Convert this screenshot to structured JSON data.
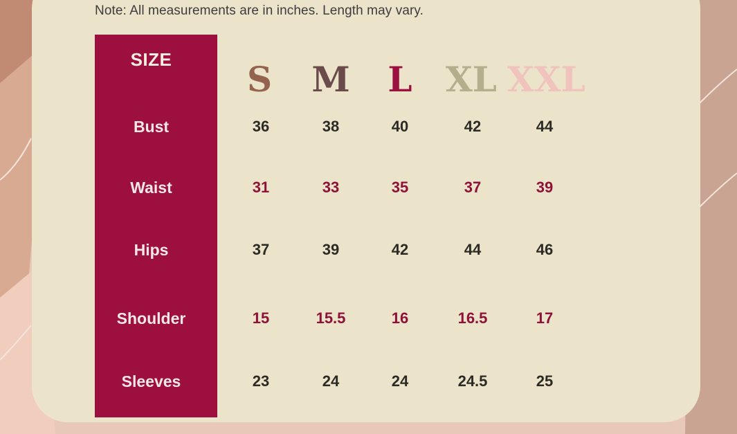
{
  "note": "Note: All measurements are in inches. Length may vary.",
  "size_label": "SIZE",
  "sizes": [
    {
      "label": "S",
      "color": "#94634e"
    },
    {
      "label": "M",
      "color": "#6a4a4a"
    },
    {
      "label": "L",
      "color": "#9b103e"
    },
    {
      "label": "XL",
      "color": "#b4ae8d"
    },
    {
      "label": "XXL",
      "color": "#f0c3bd"
    }
  ],
  "rows": [
    {
      "label": "Bust",
      "values": [
        "36",
        "38",
        "40",
        "42",
        "44"
      ]
    },
    {
      "label": "Waist",
      "values": [
        "31",
        "33",
        "35",
        "37",
        "39"
      ]
    },
    {
      "label": "Hips",
      "values": [
        "37",
        "39",
        "42",
        "44",
        "46"
      ]
    },
    {
      "label": "Shoulder",
      "values": [
        "15",
        "15.5",
        "16",
        "16.5",
        "17"
      ]
    },
    {
      "label": "Sleeves",
      "values": [
        "23",
        "24",
        "24",
        "24.5",
        "25"
      ]
    }
  ],
  "colors": {
    "size_column": "#9c0f3f",
    "card": "#ece3cb",
    "value_dark": "#2b2a24",
    "value_red": "#8e1238"
  }
}
